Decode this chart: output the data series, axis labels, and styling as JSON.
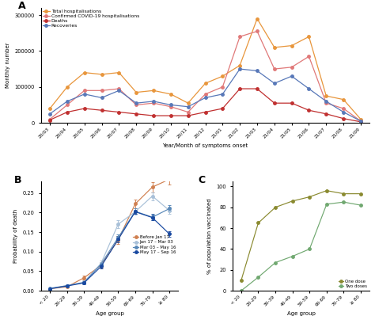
{
  "panel_A": {
    "x_labels": [
      "20/03",
      "20/04",
      "20/05",
      "20/06",
      "20/07",
      "20/08",
      "20/09",
      "20/10",
      "20/11",
      "20/12",
      "21/01",
      "21/02",
      "21/03",
      "21/04",
      "21/05",
      "21/06",
      "21/07",
      "21/08",
      "21/09"
    ],
    "total_hosp": [
      40000,
      100000,
      140000,
      135000,
      140000,
      85000,
      90000,
      80000,
      55000,
      110000,
      130000,
      160000,
      290000,
      210000,
      215000,
      240000,
      75000,
      65000,
      10000
    ],
    "confirmed_hosp": [
      10000,
      50000,
      90000,
      90000,
      95000,
      50000,
      55000,
      45000,
      30000,
      80000,
      100000,
      240000,
      255000,
      150000,
      155000,
      185000,
      55000,
      40000,
      5000
    ],
    "deaths": [
      8000,
      30000,
      40000,
      35000,
      30000,
      25000,
      20000,
      20000,
      20000,
      30000,
      40000,
      95000,
      95000,
      55000,
      55000,
      35000,
      25000,
      12000,
      3000
    ],
    "recoveries": [
      25000,
      60000,
      80000,
      70000,
      90000,
      55000,
      60000,
      50000,
      45000,
      70000,
      80000,
      150000,
      145000,
      110000,
      130000,
      95000,
      60000,
      30000,
      5000
    ],
    "ylabel": "Monthly number",
    "xlabel": "Year/Month of symptoms onset",
    "colors": {
      "total_hosp": "#E8963C",
      "confirmed_hosp": "#E07878",
      "deaths": "#C03030",
      "recoveries": "#5878B8"
    },
    "legend_labels": [
      "Total hospitalisations",
      "Confirmed COVID-19 hospitalisations",
      "Deaths",
      "Recoveries"
    ],
    "yticks": [
      0,
      100000,
      200000,
      300000
    ],
    "ylim": [
      0,
      320000
    ]
  },
  "panel_B": {
    "age_groups": [
      "< 20",
      "20-29",
      "30-39",
      "40-49",
      "50-59",
      "60-69",
      "70-79",
      "≥ 80"
    ],
    "before_jan17": {
      "mean": [
        0.005,
        0.01,
        0.033,
        0.065,
        0.13,
        0.222,
        0.265,
        0.285
      ],
      "lo": [
        0.004,
        0.009,
        0.028,
        0.058,
        0.12,
        0.21,
        0.252,
        0.272
      ],
      "hi": [
        0.006,
        0.012,
        0.038,
        0.072,
        0.14,
        0.234,
        0.278,
        0.296
      ]
    },
    "jan17_mar03": {
      "mean": [
        0.005,
        0.013,
        0.022,
        0.07,
        0.17,
        0.202,
        0.242,
        0.205
      ],
      "lo": [
        0.004,
        0.011,
        0.019,
        0.064,
        0.16,
        0.194,
        0.232,
        0.196
      ],
      "hi": [
        0.006,
        0.016,
        0.026,
        0.077,
        0.18,
        0.21,
        0.252,
        0.215
      ]
    },
    "mar03_may16": {
      "mean": [
        0.006,
        0.013,
        0.021,
        0.068,
        0.136,
        0.203,
        0.188,
        0.21
      ],
      "lo": [
        0.005,
        0.011,
        0.019,
        0.063,
        0.128,
        0.196,
        0.18,
        0.202
      ],
      "hi": [
        0.007,
        0.015,
        0.024,
        0.073,
        0.144,
        0.21,
        0.196,
        0.218
      ]
    },
    "may17_sep16": {
      "mean": [
        0.005,
        0.012,
        0.02,
        0.062,
        0.131,
        0.202,
        0.187,
        0.145
      ],
      "lo": [
        0.004,
        0.01,
        0.017,
        0.057,
        0.124,
        0.197,
        0.18,
        0.138
      ],
      "hi": [
        0.006,
        0.014,
        0.023,
        0.068,
        0.139,
        0.206,
        0.194,
        0.153
      ]
    },
    "ylabel": "Probability of death",
    "xlabel": "Age group",
    "colors": {
      "before_jan17": "#D08050",
      "jan17_mar03": "#A8C0D8",
      "mar03_may16": "#5888B8",
      "may17_sep16": "#1848A0"
    },
    "legend_labels": [
      "Before Jan 17",
      "Jan 17 – Mar 03",
      "Mar 03 – May 16",
      "May 17 – Sep 16"
    ],
    "ylim": [
      0,
      0.28
    ],
    "yticks": [
      0.0,
      0.05,
      0.1,
      0.15,
      0.2,
      0.25
    ]
  },
  "panel_C": {
    "age_groups": [
      "< 20",
      "20-29",
      "30-39",
      "40-49",
      "50-59",
      "60-69",
      "70-79",
      "≥ 80"
    ],
    "one_dose": [
      10,
      65,
      80,
      86,
      90,
      96,
      93,
      93
    ],
    "two_doses": [
      0,
      13,
      27,
      33,
      40,
      83,
      85,
      82
    ],
    "ylabel": "% of population vaccinated",
    "xlabel": "Age group",
    "colors": {
      "one_dose": "#8A8A30",
      "two_doses": "#70A870"
    },
    "legend_labels": [
      "One dose",
      "Two doses"
    ],
    "ylim": [
      0,
      105
    ],
    "yticks": [
      0,
      20,
      40,
      60,
      80,
      100
    ]
  }
}
